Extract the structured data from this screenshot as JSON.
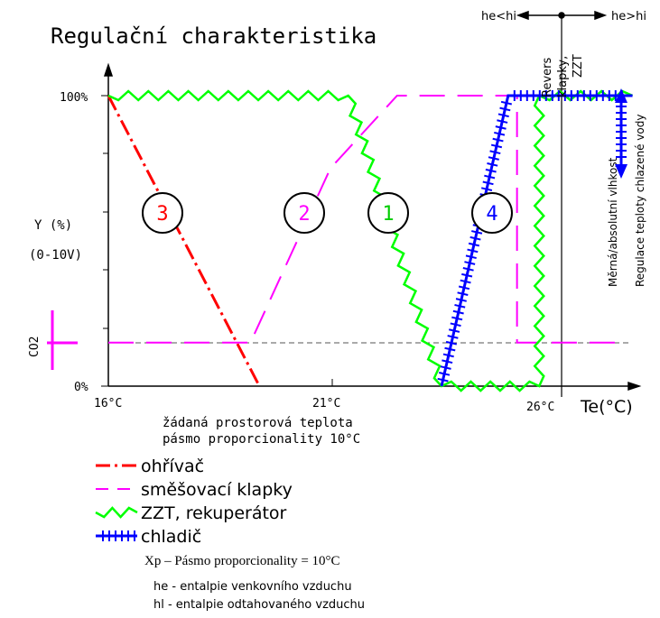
{
  "chart_data": {
    "type": "line",
    "title": "Regulační charakteristika",
    "y_label": "Y (%)",
    "y_sublabel": "(0-10V)",
    "y_ticks": [
      "100%",
      "0%"
    ],
    "x_ticks": [
      "16°C",
      "21°C",
      "26°C"
    ],
    "x_label": "Te(°C)",
    "x_caption_1": "žádaná prostorová teplota",
    "x_caption_2": "pásmo proporcionality 10°C",
    "co2_label": "CO2",
    "top_left_label": "he<hi",
    "top_right_label": "he>hi",
    "revers_label": "Revers",
    "klapky_label": "klapky,",
    "zzt_label": "ZZT",
    "vlhkost_label": "Měrná/absolutní vlhkost",
    "chlazene_label": "Regulace teploty chlazené vody",
    "circle_labels": [
      "3",
      "2",
      "1",
      "4"
    ],
    "colors": {
      "heater": "#ff0000",
      "damper": "#ff00ff",
      "zzt": "#00ff00",
      "cooler": "#0000ff",
      "axis": "#000000"
    },
    "x_range": [
      16,
      28
    ],
    "y_range": [
      0,
      100
    ],
    "series": [
      {
        "name": "ohřívač",
        "color": "#ff0000",
        "x": [
          16,
          19.4
        ],
        "y": [
          100,
          0
        ]
      },
      {
        "name": "směšovací klapky",
        "color": "#ff00ff",
        "x": [
          16,
          19.2,
          21,
          22.5,
          25.2,
          25.2,
          27.5
        ],
        "y": [
          15,
          15,
          75,
          100,
          100,
          15,
          15
        ]
      },
      {
        "name": "ZZT, rekuperátor",
        "color": "#00ff00",
        "x": [
          16,
          21.4,
          23.5,
          25.7,
          25.7,
          27.8
        ],
        "y": [
          100,
          100,
          0,
          0,
          100,
          100
        ]
      },
      {
        "name": "chladič",
        "color": "#0000ff",
        "x": [
          23.5,
          25.0,
          27.8
        ],
        "y": [
          0,
          100,
          100
        ]
      }
    ]
  },
  "legend": [
    {
      "label": "ohřívač",
      "color": "#ff0000"
    },
    {
      "label": "směšovací klapky",
      "color": "#ff00ff"
    },
    {
      "label": "ZZT, rekuperátor",
      "color": "#00ff00"
    },
    {
      "label": "chladič",
      "color": "#0000ff"
    }
  ],
  "notes": {
    "xp": "Xp – Pásmo proporcionality = 10°C",
    "he": "he - entalpie venkovního vzduchu",
    "hi": "hl - entalpie odtahovaného vzduchu"
  }
}
